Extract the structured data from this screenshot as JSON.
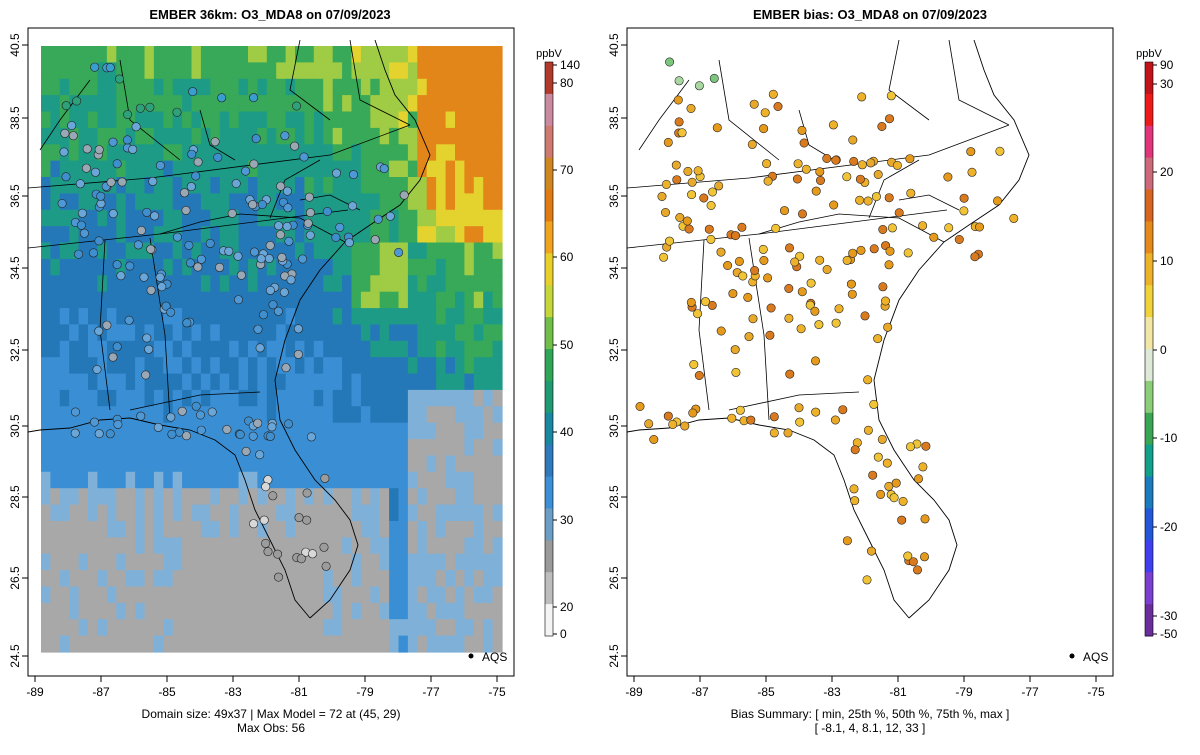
{
  "left_panel": {
    "title": "EMBER 36km: O3_MDA8 on 07/09/2023",
    "footer_line1": "Domain size: 49x37 | Max Model = 72 at (45, 29)",
    "footer_line2": "Max Obs: 56",
    "legend_label": "AQS",
    "colorbar": {
      "unit": "ppbV",
      "ticks": [
        "0",
        "20",
        "30",
        "40",
        "50",
        "60",
        "70",
        "80",
        "140"
      ],
      "colors": [
        "#f4f4f4",
        "#bdbdbd",
        "#9a9a9a",
        "#6b9ec4",
        "#3b8fd6",
        "#2f79bd",
        "#1a87a0",
        "#1f9a73",
        "#2fa557",
        "#6fbf48",
        "#c5d63a",
        "#e9cf2a",
        "#f0a31e",
        "#e07a12",
        "#d0871f",
        "#cf7a6f",
        "#c98aa0",
        "#b23a2a"
      ]
    },
    "x_ticks": [
      "-89",
      "-87",
      "-85",
      "-83",
      "-81",
      "-79",
      "-77",
      "-75"
    ],
    "y_ticks": [
      "24.5",
      "26.5",
      "28.5",
      "30.5",
      "32.5",
      "34.5",
      "36.5",
      "38.5",
      "40.5"
    ]
  },
  "right_panel": {
    "title": "EMBER bias: O3_MDA8 on 07/09/2023",
    "footer_line1": "Bias Summary: [ min, 25th %, 50th %, 75th %, max ]",
    "footer_line2": "[ -8.1,   4,   8.1,   12,   33 ]",
    "legend_label": "AQS",
    "colorbar": {
      "unit": "ppbV",
      "ticks": [
        "-50",
        "-30",
        "-20",
        "-10",
        "0",
        "10",
        "20",
        "30",
        "90"
      ],
      "colors": [
        "#6a2e9c",
        "#7a3fd0",
        "#3f3ff0",
        "#2456d8",
        "#1a7bbd",
        "#11a08a",
        "#3aa552",
        "#8ccd7a",
        "#dfe9d8",
        "#f2e6a4",
        "#f0d23a",
        "#eeb12a",
        "#e58a1a",
        "#d7641f",
        "#cc6a7c",
        "#e0357a",
        "#ee1a1a",
        "#c0131a"
      ]
    },
    "x_ticks": [
      "-89",
      "-87",
      "-85",
      "-83",
      "-81",
      "-79",
      "-77",
      "-75"
    ],
    "y_ticks": [
      "24.5",
      "26.5",
      "28.5",
      "30.5",
      "32.5",
      "34.5",
      "36.5",
      "38.5",
      "40.5"
    ]
  }
}
